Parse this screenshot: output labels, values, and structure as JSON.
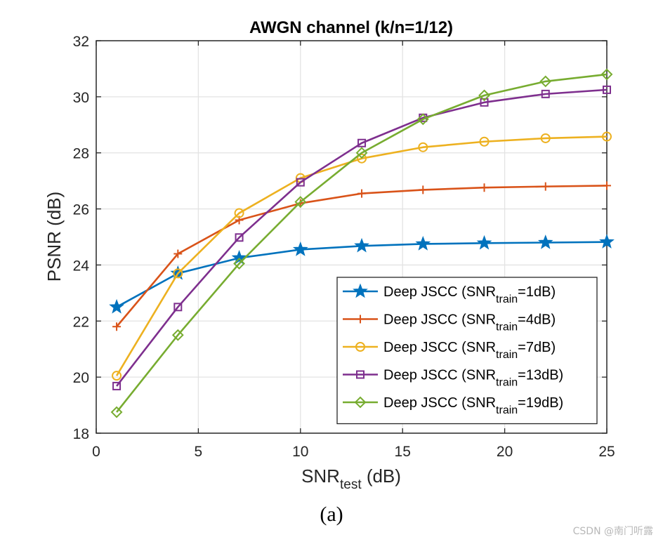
{
  "chart_data": {
    "type": "line",
    "title": "AWGN channel (k/n=1/12)",
    "xlabel": "SNR",
    "xlabel_sub": "test",
    "xlabel_suffix": " (dB)",
    "ylabel": "PSNR (dB)",
    "xlim": [
      0,
      25
    ],
    "ylim": [
      18,
      32
    ],
    "xticks": [
      0,
      5,
      10,
      15,
      20,
      25
    ],
    "yticks": [
      18,
      20,
      22,
      24,
      26,
      28,
      30,
      32
    ],
    "grid": true,
    "legend_position": "bottom-right",
    "x": [
      1,
      4,
      7,
      10,
      13,
      16,
      19,
      22,
      25
    ],
    "series": [
      {
        "name": "Deep JSCC (SNRtrain=1dB)",
        "legend_prefix": "Deep JSCC (SNR",
        "legend_sub": "train",
        "legend_suffix": "=1dB)",
        "color": "#0072bd",
        "marker": "star",
        "values": [
          22.5,
          23.7,
          24.25,
          24.55,
          24.68,
          24.75,
          24.78,
          24.8,
          24.82
        ]
      },
      {
        "name": "Deep JSCC (SNRtrain=4dB)",
        "legend_prefix": "Deep JSCC (SNR",
        "legend_sub": "train",
        "legend_suffix": "=4dB)",
        "color": "#d95319",
        "marker": "plus",
        "values": [
          21.8,
          24.4,
          25.6,
          26.2,
          26.55,
          26.68,
          26.76,
          26.8,
          26.83
        ]
      },
      {
        "name": "Deep JSCC (SNRtrain=7dB)",
        "legend_prefix": "Deep JSCC (SNR",
        "legend_sub": "train",
        "legend_suffix": "=7dB)",
        "color": "#edb120",
        "marker": "circle",
        "values": [
          20.05,
          23.7,
          25.85,
          27.1,
          27.8,
          28.2,
          28.4,
          28.52,
          28.58
        ]
      },
      {
        "name": "Deep JSCC (SNRtrain=13dB)",
        "legend_prefix": "Deep JSCC (SNR",
        "legend_sub": "train",
        "legend_suffix": "=13dB)",
        "color": "#7e2f8e",
        "marker": "square",
        "values": [
          19.68,
          22.5,
          24.98,
          26.95,
          28.35,
          29.25,
          29.8,
          30.1,
          30.25
        ]
      },
      {
        "name": "Deep JSCC (SNRtrain=19dB)",
        "legend_prefix": "Deep JSCC (SNR",
        "legend_sub": "train",
        "legend_suffix": "=19dB)",
        "color": "#77ac30",
        "marker": "diamond",
        "values": [
          18.75,
          21.5,
          24.05,
          26.25,
          28.0,
          29.2,
          30.05,
          30.55,
          30.8
        ]
      }
    ]
  },
  "caption": "(a)",
  "watermark": "CSDN @南门听露"
}
